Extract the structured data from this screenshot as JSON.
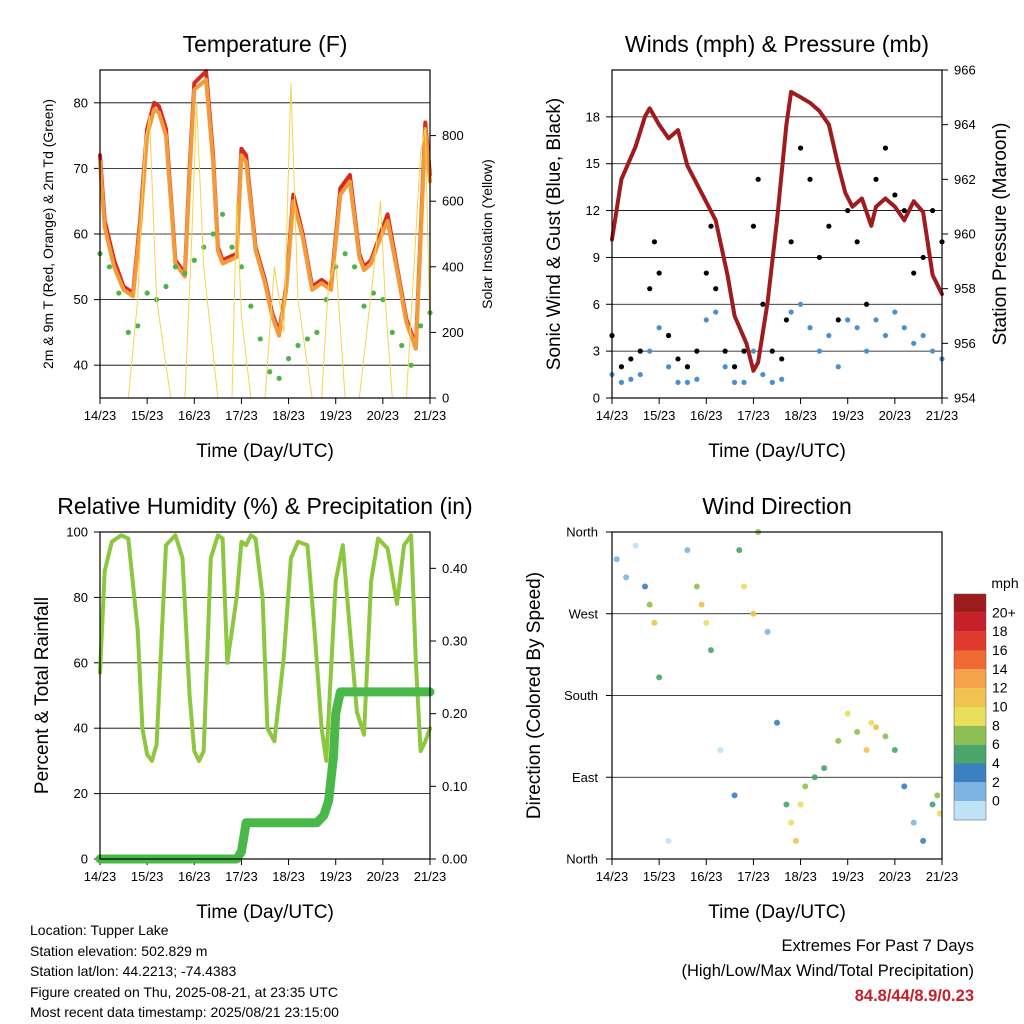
{
  "footer": {
    "location": "Location: Tupper Lake",
    "elevation": "Station elevation: 502.829 m",
    "latlon": "Station lat/lon: 44.2213; -74.4383",
    "created": "Figure created on Thu, 2025-08-21, at 23:35 UTC",
    "latest": "Most recent data timestamp: 2025/08/21 23:15:00"
  },
  "extremes": {
    "title": "Extremes For Past 7 Days",
    "subtitle": "(High/Low/Max Wind/Total Precipitation)",
    "values": "84.8/44/8.9/0.23",
    "value_color": "#c8202a"
  },
  "chart_data": [
    {
      "id": "temperature",
      "type": "line",
      "title": "Temperature (F)",
      "xlabel": "Time (Day/UTC)",
      "ylabel": "2m & 9m T (Red, Orange) & 2m Td (Green)",
      "y2label": "Solar Insolation (Yellow)",
      "xticks": [
        "14/23",
        "15/23",
        "16/23",
        "17/23",
        "18/23",
        "19/23",
        "20/23",
        "21/23"
      ],
      "xlim": [
        0,
        7
      ],
      "ylim": [
        35,
        85
      ],
      "yticks": [
        40,
        50,
        60,
        70,
        80
      ],
      "y2lim": [
        0,
        1000
      ],
      "y2ticks": [
        0,
        200,
        400,
        600,
        800
      ],
      "grid": "horizontal",
      "series": [
        {
          "color": "#d62b20",
          "axis": "left",
          "style": "line",
          "x": [
            0,
            0.1,
            0.3,
            0.5,
            0.7,
            0.85,
            1.0,
            1.15,
            1.25,
            1.4,
            1.6,
            1.8,
            1.9,
            2.0,
            2.25,
            2.4,
            2.5,
            2.6,
            2.9,
            3.0,
            3.1,
            3.3,
            3.5,
            3.65,
            3.8,
            3.95,
            4.1,
            4.3,
            4.5,
            4.7,
            4.9,
            5.1,
            5.3,
            5.5,
            5.6,
            5.75,
            5.9,
            6.1,
            6.3,
            6.5,
            6.7,
            6.8,
            6.9,
            7.0
          ],
          "y": [
            72,
            62,
            56,
            52,
            51,
            62,
            76,
            80,
            79.5,
            76,
            56,
            54,
            70,
            83,
            84.8,
            72,
            58,
            56,
            57,
            73,
            72,
            58,
            53,
            48,
            45,
            52,
            66,
            60,
            52,
            53,
            52,
            67,
            69,
            57,
            55,
            56,
            59,
            63,
            55,
            47,
            43,
            60,
            77,
            69
          ]
        },
        {
          "color": "#f39a3a",
          "axis": "left",
          "style": "line",
          "x": [
            0,
            0.1,
            0.3,
            0.5,
            0.7,
            0.85,
            1.0,
            1.15,
            1.25,
            1.4,
            1.6,
            1.8,
            1.9,
            2.0,
            2.25,
            2.4,
            2.5,
            2.6,
            2.9,
            3.0,
            3.1,
            3.3,
            3.5,
            3.65,
            3.8,
            3.95,
            4.1,
            4.3,
            4.5,
            4.7,
            4.9,
            5.1,
            5.3,
            5.5,
            5.6,
            5.75,
            5.9,
            6.1,
            6.3,
            6.5,
            6.7,
            6.8,
            6.9,
            7.0
          ],
          "y": [
            71,
            61,
            55,
            51.5,
            50.5,
            61,
            75,
            79,
            78.5,
            75,
            55.5,
            53.5,
            69,
            82,
            83.5,
            71,
            57.5,
            55.5,
            56.5,
            72,
            71,
            57.5,
            52.5,
            47.5,
            44.5,
            51.5,
            65,
            59.5,
            51.5,
            52.5,
            51.5,
            66,
            68,
            56.5,
            54.5,
            55.5,
            58.5,
            62,
            54.5,
            46.5,
            42.5,
            59,
            76,
            68
          ]
        },
        {
          "color": "#4db34a",
          "axis": "left",
          "style": "dots",
          "x": [
            0,
            0.2,
            0.4,
            0.6,
            0.8,
            1.0,
            1.2,
            1.4,
            1.6,
            1.8,
            2.0,
            2.2,
            2.4,
            2.6,
            2.8,
            3.0,
            3.2,
            3.4,
            3.6,
            3.8,
            4.0,
            4.2,
            4.4,
            4.6,
            4.8,
            5.0,
            5.2,
            5.4,
            5.6,
            5.8,
            6.0,
            6.2,
            6.4,
            6.6,
            6.8,
            7.0
          ],
          "y": [
            57,
            55,
            51,
            45,
            46,
            51,
            50,
            52,
            55,
            54,
            56,
            58,
            60,
            63,
            58,
            55,
            49,
            44,
            39,
            38,
            41,
            43,
            44,
            45,
            50,
            55,
            57,
            55,
            49,
            51,
            50,
            45,
            43,
            40,
            46,
            48
          ]
        },
        {
          "color": "#f5d44e",
          "axis": "right",
          "style": "thin-line",
          "x": [
            0,
            0.6,
            0.8,
            0.95,
            1.05,
            1.2,
            1.5,
            1.8,
            1.95,
            2.05,
            2.2,
            2.5,
            2.8,
            2.9,
            3.0,
            3.2,
            3.5,
            3.7,
            3.9,
            4.05,
            4.2,
            4.5,
            4.7,
            4.85,
            5.0,
            5.2,
            5.5,
            5.8,
            5.95,
            6.05,
            6.2,
            6.5,
            6.8,
            6.9,
            7.0
          ],
          "y": [
            0,
            0,
            300,
            780,
            860,
            300,
            0,
            0,
            500,
            900,
            400,
            0,
            0,
            600,
            250,
            0,
            0,
            400,
            200,
            960,
            300,
            0,
            0,
            350,
            420,
            0,
            0,
            380,
            600,
            300,
            0,
            0,
            750,
            820,
            200
          ]
        }
      ]
    },
    {
      "id": "winds",
      "type": "scatter",
      "title": "Winds (mph) & Pressure (mb)",
      "xlabel": "Time (Day/UTC)",
      "ylabel": "Sonic Wind & Gust (Blue, Black)",
      "y2label": "Station Pressure (Maroon)",
      "xticks": [
        "14/23",
        "15/23",
        "16/23",
        "17/23",
        "18/23",
        "19/23",
        "20/23",
        "21/23"
      ],
      "xlim": [
        0,
        7
      ],
      "ylim": [
        0,
        21
      ],
      "yticks": [
        0,
        3,
        6,
        9,
        12,
        15,
        18
      ],
      "y2lim": [
        954,
        966
      ],
      "y2ticks": [
        954,
        956,
        958,
        960,
        962,
        964,
        966
      ],
      "grid": "horizontal",
      "series": [
        {
          "color": "#9e1b1e",
          "axis": "right",
          "style": "line",
          "x": [
            0,
            0.2,
            0.5,
            0.7,
            0.8,
            1.0,
            1.2,
            1.4,
            1.6,
            1.9,
            2.2,
            2.45,
            2.6,
            2.85,
            3.0,
            3.1,
            3.3,
            3.5,
            3.7,
            3.8,
            4.0,
            4.2,
            4.4,
            4.6,
            4.8,
            4.95,
            5.1,
            5.3,
            5.5,
            5.6,
            5.8,
            6.0,
            6.2,
            6.4,
            6.6,
            6.8,
            7.0
          ],
          "y": [
            959.8,
            962,
            963.2,
            964.3,
            964.6,
            964,
            963.5,
            963.8,
            962.5,
            961.5,
            960.5,
            958.5,
            957,
            956,
            955,
            955.3,
            957.5,
            960.5,
            964,
            965.2,
            965,
            964.8,
            964.5,
            964,
            962.5,
            961.5,
            961,
            961.3,
            960.3,
            961,
            961.3,
            961,
            960.5,
            961.2,
            960.8,
            958.5,
            957.8
          ]
        },
        {
          "color": "#4a90d0",
          "axis": "left",
          "style": "dots",
          "x": [
            0,
            0.2,
            0.4,
            0.6,
            0.8,
            1.0,
            1.2,
            1.4,
            1.6,
            1.8,
            2.0,
            2.2,
            2.4,
            2.6,
            2.8,
            3.0,
            3.2,
            3.4,
            3.6,
            3.8,
            4.0,
            4.2,
            4.4,
            4.6,
            4.8,
            5.0,
            5.2,
            5.4,
            5.6,
            5.8,
            6.0,
            6.2,
            6.4,
            6.6,
            6.8,
            7.0
          ],
          "y": [
            1.5,
            1,
            1.2,
            1.5,
            3,
            4.5,
            2,
            1,
            1,
            1.2,
            5,
            5.5,
            2,
            1,
            1,
            3,
            1.5,
            1,
            1.2,
            5.5,
            6,
            4.5,
            3,
            4,
            2,
            5,
            4.5,
            3,
            5,
            4,
            5.5,
            4.5,
            3.5,
            4,
            3,
            2.5
          ]
        },
        {
          "color": "#000000",
          "axis": "left",
          "style": "dots",
          "x": [
            0,
            0.2,
            0.4,
            0.6,
            0.8,
            0.9,
            1.0,
            1.2,
            1.4,
            1.6,
            1.8,
            2.0,
            2.1,
            2.2,
            2.4,
            2.6,
            2.8,
            3.0,
            3.1,
            3.2,
            3.4,
            3.6,
            3.7,
            3.8,
            4.0,
            4.2,
            4.4,
            4.6,
            4.8,
            5.0,
            5.2,
            5.4,
            5.6,
            5.8,
            6.0,
            6.2,
            6.4,
            6.6,
            6.8,
            7.0
          ],
          "y": [
            4,
            2,
            2.5,
            3,
            7,
            10,
            8,
            4,
            2.5,
            2,
            3,
            8,
            11,
            7,
            3,
            2,
            3,
            11,
            14,
            6,
            3,
            2.5,
            5,
            10,
            16,
            14,
            9,
            11,
            5,
            12,
            10,
            6,
            14,
            16,
            13,
            12,
            8,
            9,
            12,
            10
          ]
        }
      ]
    },
    {
      "id": "humidity",
      "type": "line",
      "title": "Relative Humidity (%) & Precipitation (in)",
      "xlabel": "Time (Day/UTC)",
      "ylabel": "Percent & Total Rainfall",
      "xticks": [
        "14/23",
        "15/23",
        "16/23",
        "17/23",
        "18/23",
        "19/23",
        "20/23",
        "21/23"
      ],
      "xlim": [
        0,
        7
      ],
      "ylim": [
        0,
        100
      ],
      "yticks": [
        0,
        20,
        40,
        60,
        80,
        100
      ],
      "y2lim": [
        0,
        0.45
      ],
      "y2ticks": [
        "0.00",
        "0.10",
        "0.20",
        "0.30",
        "0.40"
      ],
      "grid": "horizontal",
      "series": [
        {
          "color": "#8dc63f",
          "axis": "left",
          "style": "line",
          "x": [
            0,
            0.1,
            0.25,
            0.45,
            0.6,
            0.8,
            0.9,
            1.0,
            1.1,
            1.2,
            1.4,
            1.6,
            1.75,
            1.9,
            2.0,
            2.1,
            2.2,
            2.35,
            2.5,
            2.6,
            2.7,
            2.9,
            3.0,
            3.1,
            3.2,
            3.3,
            3.45,
            3.55,
            3.7,
            3.9,
            4.05,
            4.2,
            4.4,
            4.55,
            4.7,
            4.8,
            5.0,
            5.15,
            5.3,
            5.45,
            5.6,
            5.75,
            5.9,
            6.1,
            6.3,
            6.45,
            6.6,
            6.7,
            6.8,
            6.9,
            7.0
          ],
          "y": [
            57,
            88,
            97,
            99,
            98,
            70,
            40,
            32,
            30,
            35,
            96,
            99,
            92,
            50,
            33,
            30,
            33,
            92,
            99,
            98,
            60,
            80,
            97,
            96,
            99,
            98,
            80,
            40,
            36,
            62,
            92,
            97,
            96,
            70,
            40,
            30,
            85,
            96,
            70,
            45,
            38,
            85,
            98,
            95,
            78,
            96,
            99,
            60,
            33,
            36,
            40
          ]
        },
        {
          "color": "#4ab848",
          "axis": "right",
          "style": "thick-step",
          "x": [
            0,
            2.9,
            3.0,
            3.05,
            3.1,
            3.2,
            4.6,
            4.75,
            4.85,
            4.95,
            5.0,
            5.1,
            5.2,
            7.0
          ],
          "y": [
            0,
            0,
            0.01,
            0.03,
            0.05,
            0.05,
            0.05,
            0.06,
            0.08,
            0.14,
            0.2,
            0.23,
            0.23,
            0.23
          ]
        }
      ]
    },
    {
      "id": "winddir",
      "type": "scatter",
      "title": "Wind Direction",
      "xlabel": "Time (Day/UTC)",
      "ylabel": "Direction (Colored By Speed)",
      "xticks": [
        "14/23",
        "15/23",
        "16/23",
        "17/23",
        "18/23",
        "19/23",
        "20/23",
        "21/23"
      ],
      "xlim": [
        0,
        7
      ],
      "ylim": [
        0,
        360
      ],
      "yticks": [
        "North",
        "East",
        "South",
        "West",
        "North"
      ],
      "grid": "horizontal",
      "colorbar": {
        "title": "mph",
        "labels": [
          "20+",
          "18",
          "16",
          "14",
          "12",
          "10",
          "8",
          "6",
          "4",
          "2",
          "0"
        ],
        "colors": [
          "#9e1b1e",
          "#c8202a",
          "#e03a2e",
          "#f06a34",
          "#f5a24a",
          "#f0c24f",
          "#e8df5a",
          "#8cc152",
          "#4aa56a",
          "#3a80c0",
          "#7db5e2",
          "#bfe2f6"
        ]
      },
      "series": [
        {
          "style": "dots",
          "x": [
            0.1,
            0.3,
            0.5,
            0.7,
            0.8,
            0.9,
            1.0,
            1.2,
            1.6,
            1.8,
            1.9,
            2.0,
            2.1,
            2.3,
            2.6,
            2.7,
            2.8,
            3.0,
            3.1,
            3.3,
            3.5,
            3.7,
            3.8,
            3.9,
            4.0,
            4.1,
            4.3,
            4.5,
            4.8,
            5.0,
            5.2,
            5.4,
            5.5,
            5.6,
            5.8,
            6.0,
            6.2,
            6.4,
            6.6,
            6.8,
            6.9,
            6.95
          ],
          "y": [
            330,
            310,
            345,
            300,
            280,
            260,
            200,
            20,
            340,
            300,
            280,
            260,
            230,
            120,
            70,
            340,
            300,
            270,
            360,
            250,
            150,
            60,
            40,
            20,
            60,
            80,
            90,
            100,
            130,
            160,
            140,
            120,
            150,
            145,
            135,
            120,
            80,
            40,
            20,
            60,
            70,
            50
          ],
          "speed": [
            1,
            1,
            0,
            2,
            4,
            6,
            3,
            0,
            1,
            4,
            6,
            5,
            3,
            0,
            2,
            3,
            5,
            6,
            4,
            1,
            2,
            3,
            5,
            6,
            5,
            4,
            3,
            3,
            4,
            5,
            4,
            6,
            5,
            6,
            4,
            3,
            2,
            1,
            2,
            3,
            4,
            5
          ]
        }
      ]
    }
  ]
}
